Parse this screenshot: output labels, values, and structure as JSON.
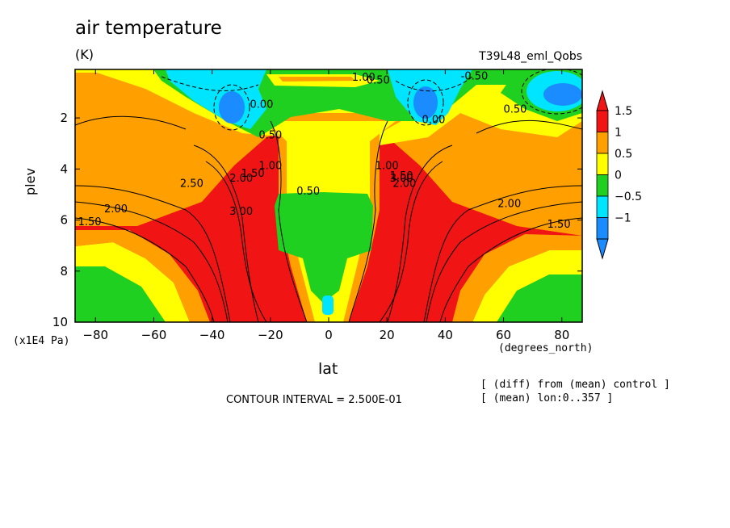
{
  "chart_data": {
    "type": "heatmap",
    "title": "air temperature",
    "units": "(K)",
    "run_label": "T39L48_eml_Qobs",
    "xlabel": "lat",
    "x_units": "(degrees_north)",
    "ylabel": "plev",
    "y_multiplier": "(x1E4 Pa)",
    "x_ticks": [
      -80,
      -60,
      -40,
      -20,
      0,
      20,
      40,
      60,
      80
    ],
    "x_tick_labels": [
      "−80",
      "−60",
      "−40",
      "−20",
      "0",
      "20",
      "40",
      "60",
      "80"
    ],
    "y_ticks": [
      2,
      4,
      6,
      8,
      10
    ],
    "y_tick_labels": [
      "2",
      "4",
      "6",
      "8",
      "10"
    ],
    "xlim": [
      -87,
      87
    ],
    "ylim_inverted": [
      0.1,
      10
    ],
    "contour_interval": "CONTOUR INTERVAL = 2.500E-01",
    "notes": [
      "[ (diff) from (mean) control ]",
      "[ (mean) lon:0..357 ]"
    ],
    "colorbar": {
      "levels": [
        -1,
        -0.5,
        0,
        0.5,
        1,
        1.5
      ],
      "labels": [
        "−1",
        "−0.5",
        "0",
        "0.5",
        "1",
        "1.5"
      ],
      "colors": [
        "#1a8cff",
        "#00e5ff",
        "#20d020",
        "#ffff00",
        "#ffa000",
        "#f01414"
      ]
    },
    "contour_labels": [
      {
        "text": "3.00",
        "lat": 25,
        "p": 4.5
      },
      {
        "text": "3.00",
        "lat": -30,
        "p": 5.8
      },
      {
        "text": "2.50",
        "lat": -47,
        "p": 4.7
      },
      {
        "text": "2.00",
        "lat": -73,
        "p": 5.7
      },
      {
        "text": "1.50",
        "lat": -82,
        "p": 6.2
      },
      {
        "text": "2.00",
        "lat": 62,
        "p": 5.5
      },
      {
        "text": "1.50",
        "lat": 79,
        "p": 6.3
      },
      {
        "text": "1.00",
        "lat": -20,
        "p": 4.0
      },
      {
        "text": "1.50",
        "lat": -26,
        "p": 4.3
      },
      {
        "text": "2.00",
        "lat": -30,
        "p": 4.5
      },
      {
        "text": "1.00",
        "lat": 20,
        "p": 4.0
      },
      {
        "text": "1.50",
        "lat": 25,
        "p": 4.4
      },
      {
        "text": "2.00",
        "lat": 26,
        "p": 4.7
      },
      {
        "text": "0.50",
        "lat": -7,
        "p": 5.0
      },
      {
        "text": "0.50",
        "lat": -20,
        "p": 2.8
      },
      {
        "text": "0.00",
        "lat": -23,
        "p": 1.6
      },
      {
        "text": "0.50",
        "lat": 17,
        "p": 0.65
      },
      {
        "text": "1.00",
        "lat": 12,
        "p": 0.55
      },
      {
        "text": "0.00",
        "lat": 36,
        "p": 2.2
      },
      {
        "text": "-0.50",
        "lat": 50,
        "p": 0.5
      },
      {
        "text": "0.50",
        "lat": 64,
        "p": 1.8
      }
    ]
  }
}
